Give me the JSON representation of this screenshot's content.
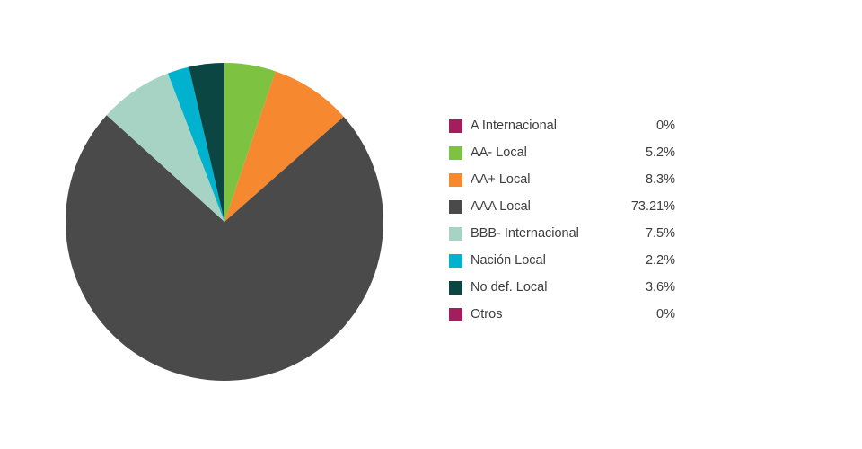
{
  "chart_data": {
    "type": "pie",
    "title": "",
    "legend_position": "right",
    "start_angle_deg": -90,
    "direction": "clockwise",
    "background_color": "#ffffff",
    "series": [
      {
        "label": "A Internacional",
        "value": 0,
        "display": "0%",
        "color": "#a21e5c"
      },
      {
        "label": "AA- Local",
        "value": 5.2,
        "display": "5.2%",
        "color": "#7ec241"
      },
      {
        "label": "AA+ Local",
        "value": 8.3,
        "display": "8.3%",
        "color": "#f6882f"
      },
      {
        "label": "AAA Local",
        "value": 73.21,
        "display": "73.21%",
        "color": "#4a4a4a"
      },
      {
        "label": "BBB- Internacional",
        "value": 7.5,
        "display": "7.5%",
        "color": "#a6d3c4"
      },
      {
        "label": "Nación Local",
        "value": 2.2,
        "display": "2.2%",
        "color": "#00b2ce"
      },
      {
        "label": "No def. Local",
        "value": 3.6,
        "display": "3.6%",
        "color": "#0b4643"
      },
      {
        "label": "Otros",
        "value": 0,
        "display": "0%",
        "color": "#a21e5c"
      }
    ]
  }
}
